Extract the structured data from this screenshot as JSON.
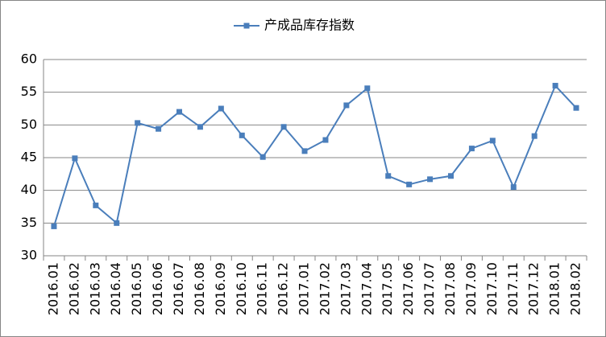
{
  "chart_data": {
    "type": "line",
    "categories": [
      "2016.01",
      "2016.02",
      "2016.03",
      "2016.04",
      "2016.05",
      "2016.06",
      "2016.07",
      "2016.08",
      "2016.09",
      "2016.10",
      "2016.11",
      "2016.12",
      "2017.01",
      "2017.02",
      "2017.03",
      "2017.04",
      "2017.05",
      "2017.06",
      "2017.07",
      "2017.08",
      "2017.09",
      "2017.10",
      "2017.11",
      "2017.12",
      "2018.01",
      "2018.02"
    ],
    "series": [
      {
        "name": "产成品库存指数",
        "color": "#4a7ebb",
        "values": [
          34.5,
          44.9,
          37.7,
          35.0,
          50.3,
          49.4,
          52.0,
          49.7,
          52.5,
          48.4,
          45.1,
          49.7,
          46.0,
          47.7,
          53.0,
          55.6,
          42.2,
          40.9,
          41.7,
          42.2,
          46.4,
          47.6,
          40.5,
          48.3,
          56.0,
          52.6
        ]
      }
    ],
    "ylim": [
      30,
      60
    ],
    "yticks": [
      30,
      35,
      40,
      45,
      50,
      55,
      60
    ],
    "grid": true,
    "legend": "top"
  }
}
